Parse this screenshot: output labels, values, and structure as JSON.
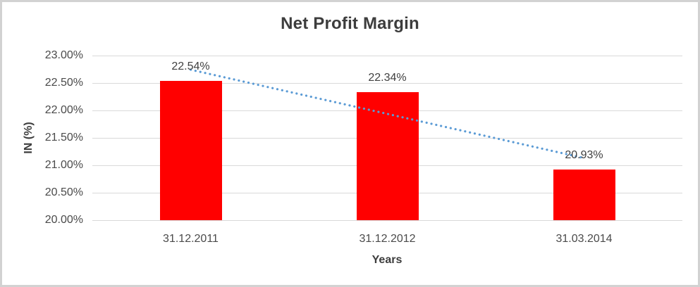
{
  "window": {
    "background_color": "#FFFFFF",
    "border_color": "#D2D2D2"
  },
  "chart_data": {
    "type": "bar",
    "title": "Net Profit Margin",
    "xlabel": "Years",
    "ylabel": "IN (%)",
    "categories": [
      "31.12.2011",
      "31.12.2012",
      "31.03.2014"
    ],
    "series": [
      {
        "name": "Net Profit Margin",
        "values": [
          22.54,
          22.34,
          20.93
        ],
        "color": "#FF0000"
      }
    ],
    "data_labels": [
      "22.54%",
      "22.34%",
      "20.93%"
    ],
    "ylim": [
      20,
      23
    ],
    "ytick_step": 0.5,
    "ytick_labels": [
      "23.00%",
      "22.50%",
      "22.00%",
      "21.50%",
      "21.00%",
      "20.50%",
      "20.00%"
    ],
    "grid": true,
    "legend": "none",
    "trendline": {
      "fit": "linear",
      "style": "dotted",
      "color": "#5B9BD5"
    },
    "colors": {
      "grid": "#D9D9D9",
      "text": "#404040",
      "title_text": "#3D3D3D"
    }
  }
}
